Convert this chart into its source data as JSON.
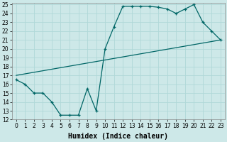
{
  "xlabel": "Humidex (Indice chaleur)",
  "bg_color": "#cde8e8",
  "grid_color": "#b0d8d8",
  "line_color": "#006666",
  "curve1_x": [
    0,
    1,
    2,
    3,
    4,
    5,
    6,
    7,
    8,
    9,
    10,
    11,
    12,
    13,
    14,
    15,
    16,
    17,
    18,
    19,
    20,
    21,
    22,
    23
  ],
  "curve1_y": [
    16.5,
    16.0,
    15.0,
    15.0,
    14.0,
    12.5,
    12.5,
    12.5,
    15.5,
    13.0,
    20.0,
    22.5,
    24.8,
    24.8,
    24.8,
    24.8,
    24.7,
    24.5,
    24.0,
    24.5,
    25.0,
    23.0,
    22.0,
    21.0
  ],
  "curve2_x": [
    0,
    23
  ],
  "curve2_y": [
    17.0,
    21.0
  ],
  "xlim": [
    -0.5,
    23.5
  ],
  "ylim": [
    12,
    25.2
  ],
  "yticks": [
    12,
    13,
    14,
    15,
    16,
    17,
    18,
    19,
    20,
    21,
    22,
    23,
    24,
    25
  ],
  "xticks": [
    0,
    1,
    2,
    3,
    4,
    5,
    6,
    7,
    8,
    9,
    10,
    11,
    12,
    13,
    14,
    15,
    16,
    17,
    18,
    19,
    20,
    21,
    22,
    23
  ],
  "tick_fontsize": 5.5,
  "label_fontsize": 7
}
